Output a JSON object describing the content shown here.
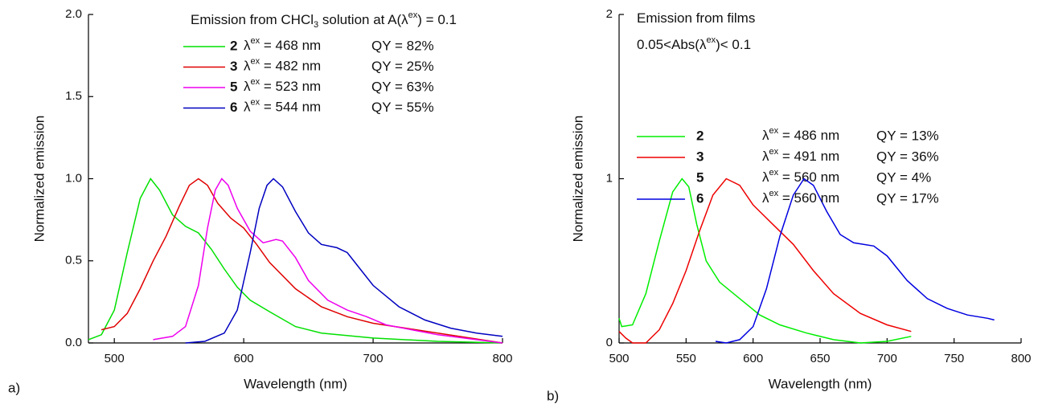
{
  "chart_data": [
    {
      "type": "line",
      "panel_label": "a)",
      "title": [
        "Emission from CHCl",
        "3",
        " solution at A(λ",
        "ex",
        ") = 0.1"
      ],
      "x_label": "Wavelength (nm)",
      "y_label": "Normalized emission",
      "xlim": [
        480,
        800
      ],
      "xticks": [
        500,
        600,
        700,
        800
      ],
      "ylim": [
        0,
        2
      ],
      "yticks": [
        {
          "value": 0,
          "label": "0.0"
        },
        {
          "value": 0.5,
          "label": "0.5"
        },
        {
          "value": 1,
          "label": "1.0"
        },
        {
          "value": 1.5,
          "label": "1.5"
        },
        {
          "value": 2,
          "label": "2.0"
        }
      ],
      "series": [
        {
          "name": "2",
          "color": "#00e000",
          "excitation_label": [
            "λ",
            "ex",
            " = 468 nm"
          ],
          "qy_label": "QY = 82%",
          "x": [
            480,
            490,
            500,
            510,
            520,
            528,
            535,
            545,
            555,
            565,
            575,
            585,
            595,
            605,
            620,
            640,
            660,
            700,
            750,
            800
          ],
          "values": [
            0.02,
            0.05,
            0.2,
            0.55,
            0.88,
            1.0,
            0.93,
            0.78,
            0.71,
            0.67,
            0.57,
            0.45,
            0.34,
            0.26,
            0.19,
            0.1,
            0.06,
            0.03,
            0.01,
            0.0
          ]
        },
        {
          "name": "3",
          "color": "#e00000",
          "excitation_label": [
            "λ",
            "ex",
            " = 482 nm"
          ],
          "qy_label": "QY = 25%",
          "x": [
            490,
            500,
            510,
            520,
            530,
            540,
            550,
            558,
            565,
            572,
            580,
            590,
            600,
            610,
            620,
            640,
            660,
            680,
            700,
            750,
            800
          ],
          "values": [
            0.08,
            0.1,
            0.18,
            0.33,
            0.5,
            0.65,
            0.83,
            0.96,
            1.0,
            0.96,
            0.85,
            0.76,
            0.7,
            0.6,
            0.49,
            0.33,
            0.22,
            0.16,
            0.12,
            0.06,
            0.0
          ]
        },
        {
          "name": "5",
          "color": "#ee00ee",
          "excitation_label": [
            "λ",
            "ex",
            " = 523 nm"
          ],
          "qy_label": "QY = 63%",
          "x": [
            530,
            545,
            555,
            565,
            572,
            578,
            583,
            588,
            595,
            605,
            615,
            625,
            630,
            640,
            650,
            665,
            680,
            695,
            710,
            750,
            800
          ],
          "values": [
            0.02,
            0.04,
            0.1,
            0.35,
            0.7,
            0.93,
            1.0,
            0.96,
            0.82,
            0.68,
            0.61,
            0.63,
            0.62,
            0.52,
            0.38,
            0.26,
            0.2,
            0.16,
            0.11,
            0.05,
            0.0
          ]
        },
        {
          "name": "6",
          "color": "#0000c0",
          "excitation_label": [
            "λ",
            "ex",
            " = 544 nm"
          ],
          "qy_label": "QY = 55%",
          "x": [
            555,
            570,
            585,
            595,
            605,
            612,
            618,
            623,
            630,
            640,
            650,
            660,
            672,
            680,
            690,
            700,
            720,
            740,
            760,
            780,
            800
          ],
          "values": [
            0.0,
            0.01,
            0.06,
            0.2,
            0.55,
            0.82,
            0.96,
            1.0,
            0.95,
            0.8,
            0.67,
            0.6,
            0.58,
            0.55,
            0.45,
            0.35,
            0.22,
            0.14,
            0.09,
            0.06,
            0.04
          ]
        }
      ]
    },
    {
      "type": "line",
      "panel_label": "b)",
      "title": [
        "Emission from films"
      ],
      "subtitle": [
        "0.05<Abs(λ",
        "ex",
        ")< 0.1"
      ],
      "x_label": "Wavelength (nm)",
      "y_label": "Normalized emission",
      "xlim": [
        500,
        800
      ],
      "xticks": [
        500,
        550,
        600,
        650,
        700,
        750,
        800
      ],
      "ylim": [
        0,
        2
      ],
      "yticks": [
        0,
        1,
        2
      ],
      "series": [
        {
          "name": "2",
          "color": "#00ee00",
          "excitation_label": [
            "λ",
            "ex",
            " = 486 nm"
          ],
          "qy_label": "QY = 13%",
          "x": [
            500,
            502,
            510,
            520,
            530,
            540,
            547,
            552,
            558,
            565,
            575,
            590,
            605,
            620,
            640,
            660,
            680,
            700,
            718
          ],
          "values": [
            0.15,
            0.1,
            0.11,
            0.3,
            0.62,
            0.92,
            1.0,
            0.95,
            0.72,
            0.5,
            0.37,
            0.27,
            0.17,
            0.11,
            0.06,
            0.02,
            0.0,
            0.01,
            0.04
          ]
        },
        {
          "name": "3",
          "color": "#ee0000",
          "excitation_label": [
            "λ",
            "ex",
            " = 491 nm"
          ],
          "qy_label": "QY = 36%",
          "x": [
            500,
            505,
            510,
            520,
            530,
            540,
            550,
            560,
            570,
            580,
            590,
            600,
            605,
            615,
            630,
            645,
            660,
            680,
            700,
            718
          ],
          "values": [
            0.07,
            0.03,
            0.0,
            0.0,
            0.08,
            0.24,
            0.44,
            0.68,
            0.9,
            1.0,
            0.96,
            0.84,
            0.8,
            0.72,
            0.6,
            0.44,
            0.3,
            0.18,
            0.11,
            0.07
          ]
        },
        {
          "name": "5",
          "excitation_label": [
            "λ",
            "ex",
            " = 560 nm"
          ],
          "qy_label": "QY = 4%"
        },
        {
          "name": "6",
          "color": "#0000e0",
          "excitation_label": [
            "λ",
            "ex",
            " = 560 nm"
          ],
          "qy_label": "QY = 17%",
          "x": [
            572,
            580,
            590,
            600,
            610,
            620,
            630,
            638,
            645,
            655,
            665,
            675,
            690,
            700,
            715,
            730,
            745,
            760,
            775,
            780
          ],
          "values": [
            0.01,
            0.0,
            0.02,
            0.1,
            0.33,
            0.65,
            0.9,
            1.0,
            0.96,
            0.8,
            0.66,
            0.61,
            0.59,
            0.53,
            0.38,
            0.27,
            0.21,
            0.17,
            0.15,
            0.14
          ]
        }
      ]
    }
  ]
}
